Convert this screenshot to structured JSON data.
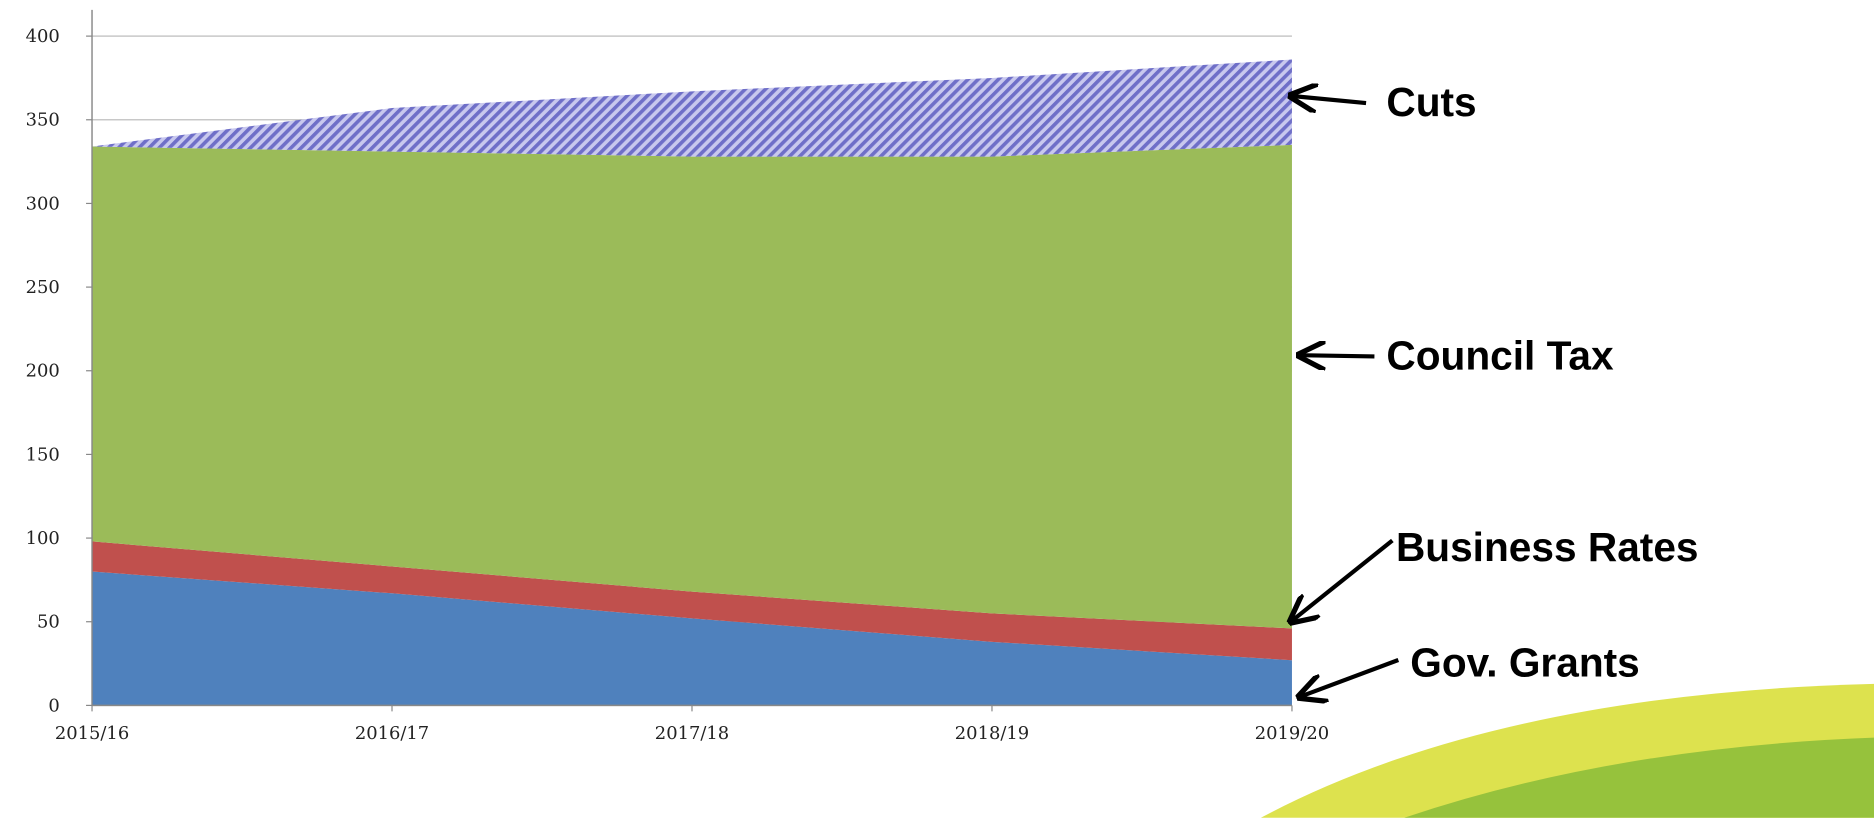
{
  "chart_data": {
    "type": "stacked_area",
    "categories": [
      "2015/16",
      "2016/17",
      "2017/18",
      "2018/19",
      "2019/20"
    ],
    "series": [
      {
        "name": "Gov. Grants",
        "color": "#4f81bd",
        "values": [
          80,
          67,
          52,
          38,
          27
        ]
      },
      {
        "name": "Business Rates",
        "color": "#c0504d",
        "values": [
          18,
          16,
          16,
          17,
          19
        ]
      },
      {
        "name": "Council Tax",
        "color": "#9bbb59",
        "values": [
          236,
          248,
          260,
          273,
          289
        ]
      },
      {
        "name": "Cuts",
        "color": "#7f7fd0",
        "values": [
          0,
          26,
          39,
          47,
          51
        ]
      }
    ],
    "ylim": [
      0,
      400
    ],
    "yticks": [
      0,
      50,
      100,
      150,
      200,
      250,
      300,
      350,
      400
    ],
    "grid": true
  }
}
